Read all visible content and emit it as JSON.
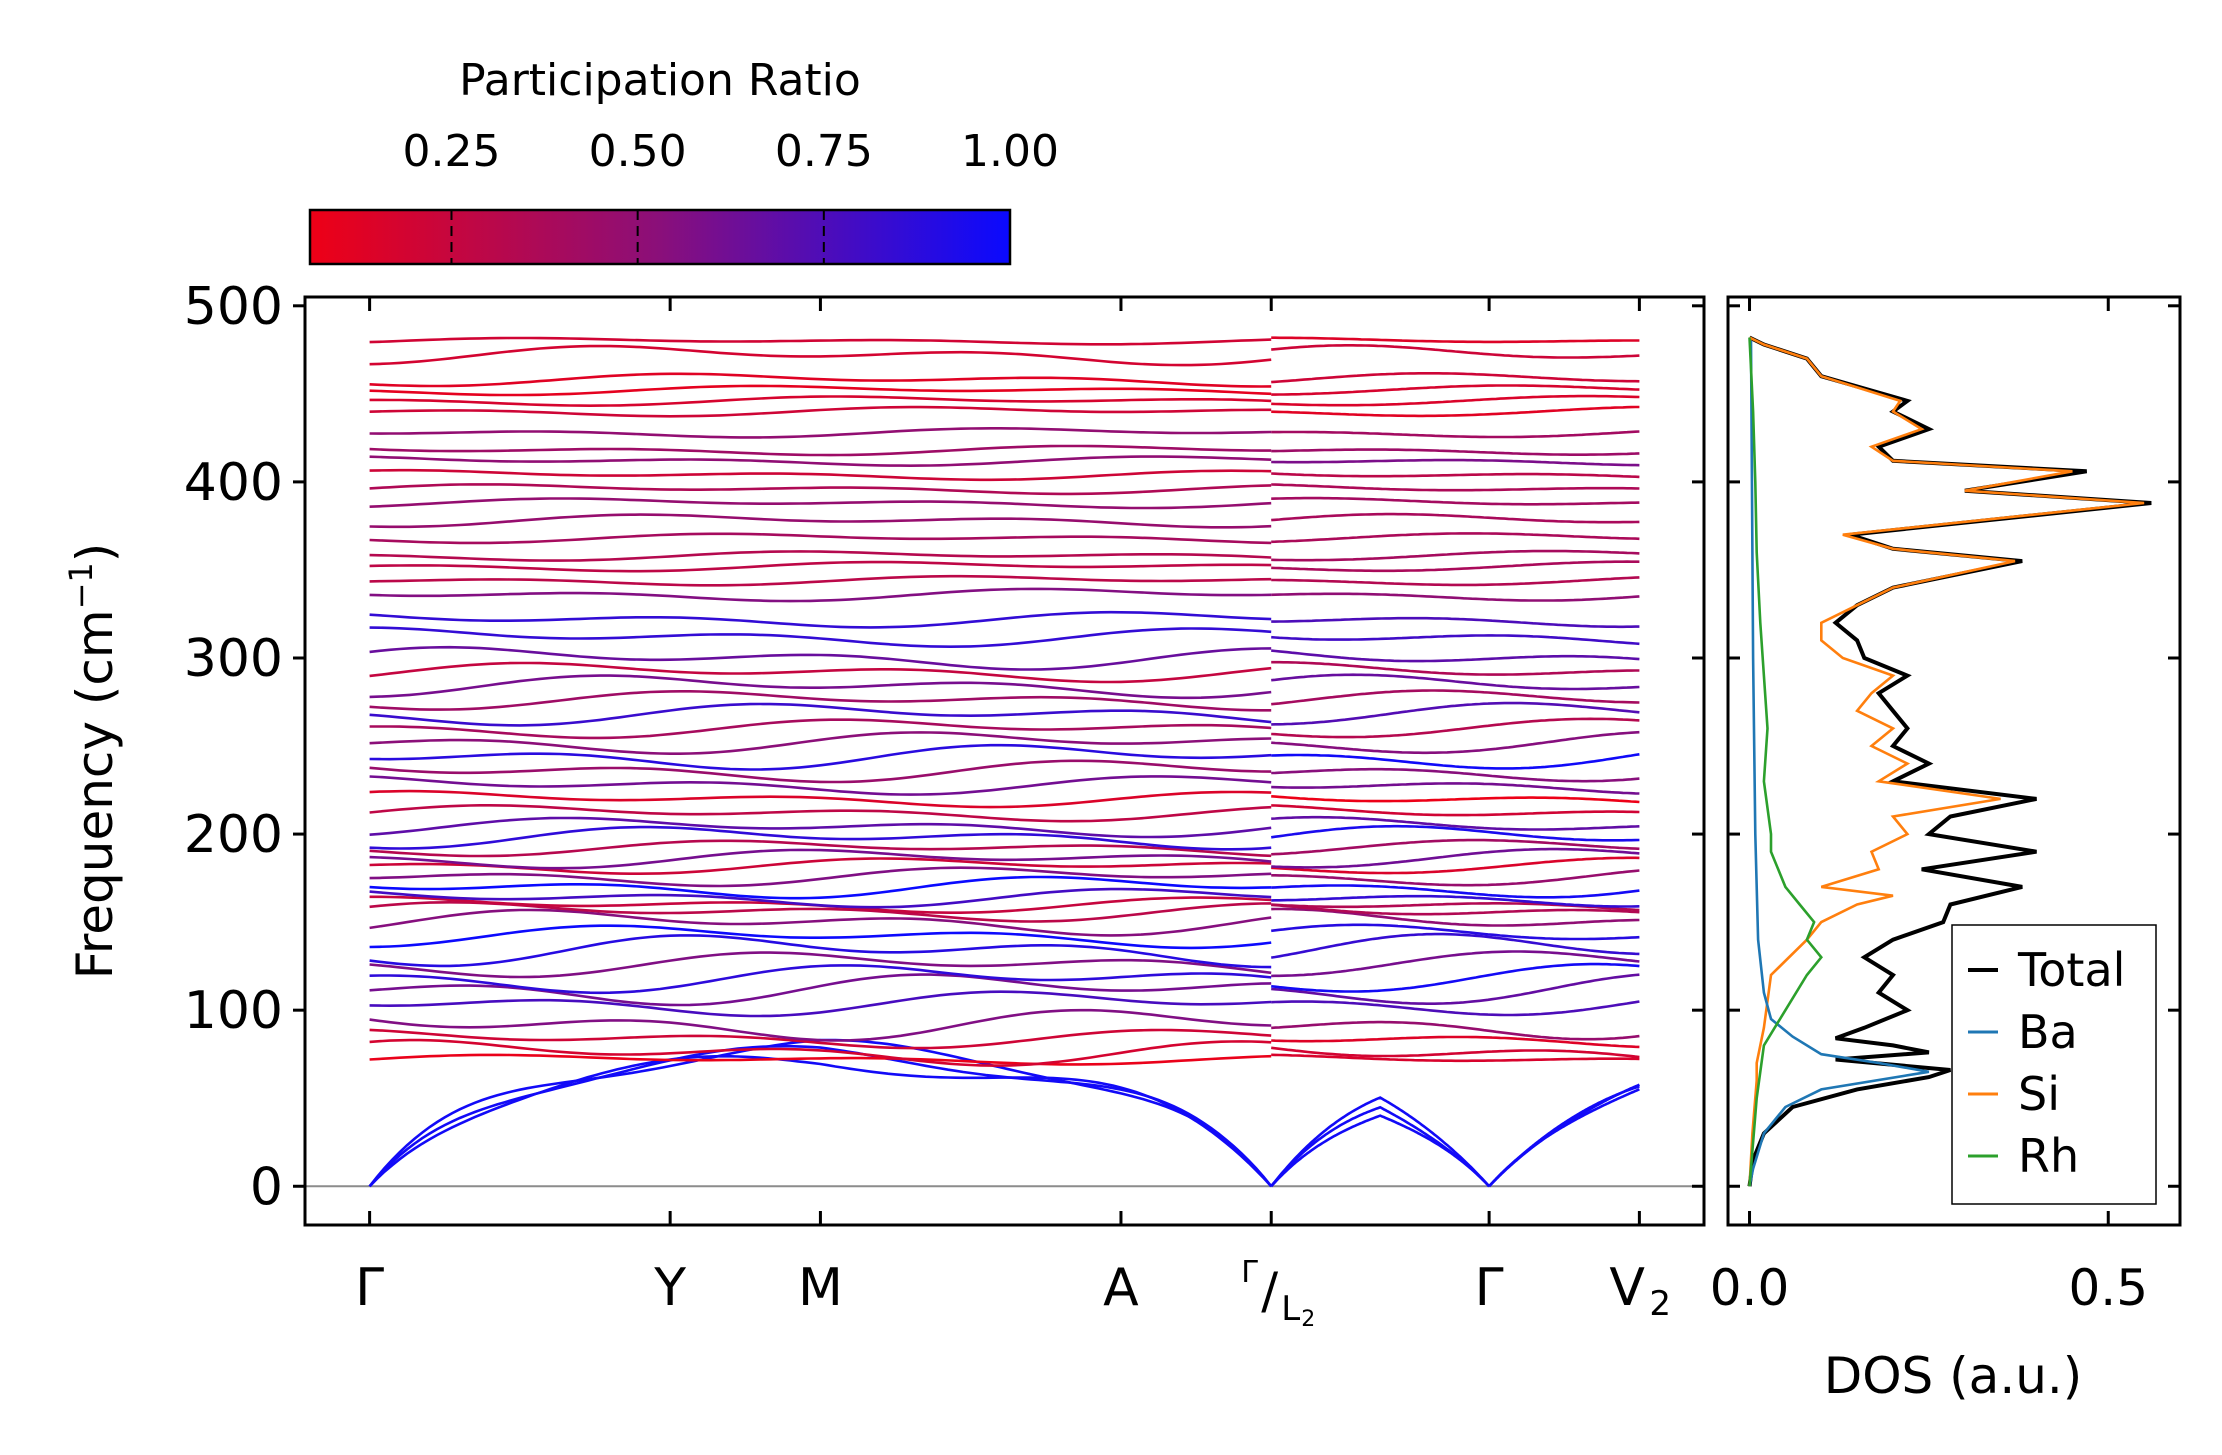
{
  "chart_data": [
    {
      "type": "line",
      "name": "phonon-band-structure",
      "ylabel": "Frequency (cm⁻¹)",
      "ylabel_base": "Frequency (cm",
      "ylabel_exp": "−1",
      "ylabel_close": ")",
      "ylim": [
        -22,
        505
      ],
      "yticks": [
        0,
        100,
        200,
        300,
        400,
        500
      ],
      "ytick_labels": [
        "0",
        "100",
        "200",
        "300",
        "400",
        "500"
      ],
      "kpath_positions": [
        0,
        2.0,
        3.0,
        5.0,
        6.0,
        7.45,
        8.45
      ],
      "kpath_labels": [
        "Γ",
        "Y",
        "M",
        "A",
        "Γ/L₂",
        "Γ",
        "V₂"
      ],
      "special_label": {
        "top": "Γ",
        "slash": "/",
        "main": "L",
        "sub": "2"
      },
      "v2_label": {
        "main": "V",
        "sub": "2"
      },
      "xlim": [
        -0.43,
        8.88
      ],
      "colorbar": {
        "label": "Participation Ratio",
        "range": [
          0.06,
          1.0
        ],
        "ticks": [
          0.25,
          0.5,
          0.75,
          1.0
        ],
        "tick_labels": [
          "0.25",
          "0.50",
          "0.75",
          "1.00"
        ],
        "color_low": "#ee0016",
        "color_mid": "#8a0f7a",
        "color_high": "#0a0aff"
      },
      "acoustic_max": [
        85,
        82,
        78
      ],
      "optical_bands": [
        {
          "freq": 72,
          "amp": 3,
          "pr": 0.08
        },
        {
          "freq": 76,
          "amp": 8,
          "pr": 0.1
        },
        {
          "freq": 84,
          "amp": 6,
          "pr": 0.12
        },
        {
          "freq": 92,
          "amp": 10,
          "pr": 0.55
        },
        {
          "freq": 104,
          "amp": 8,
          "pr": 0.85
        },
        {
          "freq": 112,
          "amp": 10,
          "pr": 0.7
        },
        {
          "freq": 118,
          "amp": 9,
          "pr": 0.9
        },
        {
          "freq": 126,
          "amp": 8,
          "pr": 0.5
        },
        {
          "freq": 134,
          "amp": 10,
          "pr": 0.8
        },
        {
          "freq": 142,
          "amp": 7,
          "pr": 0.95
        },
        {
          "freq": 150,
          "amp": 8,
          "pr": 0.6
        },
        {
          "freq": 156,
          "amp": 6,
          "pr": 0.4
        },
        {
          "freq": 160,
          "amp": 5,
          "pr": 0.3
        },
        {
          "freq": 164,
          "amp": 6,
          "pr": 0.75
        },
        {
          "freq": 170,
          "amp": 7,
          "pr": 0.9
        },
        {
          "freq": 176,
          "amp": 6,
          "pr": 0.5
        },
        {
          "freq": 182,
          "amp": 5,
          "pr": 0.25
        },
        {
          "freq": 186,
          "amp": 6,
          "pr": 0.7
        },
        {
          "freq": 192,
          "amp": 5,
          "pr": 0.4
        },
        {
          "freq": 198,
          "amp": 7,
          "pr": 0.85
        },
        {
          "freq": 204,
          "amp": 6,
          "pr": 0.6
        },
        {
          "freq": 212,
          "amp": 5,
          "pr": 0.2
        },
        {
          "freq": 220,
          "amp": 5,
          "pr": 0.15
        },
        {
          "freq": 228,
          "amp": 6,
          "pr": 0.7
        },
        {
          "freq": 236,
          "amp": 7,
          "pr": 0.55
        },
        {
          "freq": 244,
          "amp": 8,
          "pr": 0.9
        },
        {
          "freq": 252,
          "amp": 7,
          "pr": 0.45
        },
        {
          "freq": 260,
          "amp": 6,
          "pr": 0.3
        },
        {
          "freq": 268,
          "amp": 7,
          "pr": 0.8
        },
        {
          "freq": 276,
          "amp": 6,
          "pr": 0.5
        },
        {
          "freq": 284,
          "amp": 7,
          "pr": 0.7
        },
        {
          "freq": 292,
          "amp": 6,
          "pr": 0.3
        },
        {
          "freq": 300,
          "amp": 7,
          "pr": 0.6
        },
        {
          "freq": 312,
          "amp": 6,
          "pr": 0.75
        },
        {
          "freq": 322,
          "amp": 5,
          "pr": 0.8
        },
        {
          "freq": 336,
          "amp": 4,
          "pr": 0.6
        },
        {
          "freq": 344,
          "amp": 3,
          "pr": 0.4
        },
        {
          "freq": 352,
          "amp": 3,
          "pr": 0.35
        },
        {
          "freq": 358,
          "amp": 3,
          "pr": 0.3
        },
        {
          "freq": 368,
          "amp": 3,
          "pr": 0.3
        },
        {
          "freq": 378,
          "amp": 4,
          "pr": 0.4
        },
        {
          "freq": 388,
          "amp": 3,
          "pr": 0.5
        },
        {
          "freq": 396,
          "amp": 3,
          "pr": 0.45
        },
        {
          "freq": 404,
          "amp": 3,
          "pr": 0.3
        },
        {
          "freq": 412,
          "amp": 3,
          "pr": 0.5
        },
        {
          "freq": 418,
          "amp": 3,
          "pr": 0.35
        },
        {
          "freq": 428,
          "amp": 3,
          "pr": 0.4
        },
        {
          "freq": 440,
          "amp": 3,
          "pr": 0.2
        },
        {
          "freq": 446,
          "amp": 3,
          "pr": 0.25
        },
        {
          "freq": 452,
          "amp": 3,
          "pr": 0.2
        },
        {
          "freq": 458,
          "amp": 4,
          "pr": 0.15
        },
        {
          "freq": 472,
          "amp": 6,
          "pr": 0.12
        },
        {
          "freq": 480,
          "amp": 2,
          "pr": 0.1
        }
      ]
    },
    {
      "type": "line",
      "name": "density-of-states",
      "xlabel": "DOS (a.u.)",
      "xlim": [
        -0.03,
        0.6
      ],
      "xticks": [
        0.0,
        0.5
      ],
      "xtick_labels": [
        "0.0",
        "0.5"
      ],
      "ylim": [
        -22,
        505
      ],
      "legend_position": "lower-right",
      "series": [
        {
          "name": "Total",
          "color": "#000000",
          "points": [
            [
              0,
              0
            ],
            [
              0.005,
              15
            ],
            [
              0.02,
              30
            ],
            [
              0.06,
              45
            ],
            [
              0.15,
              55
            ],
            [
              0.25,
              62
            ],
            [
              0.28,
              66
            ],
            [
              0.12,
              72
            ],
            [
              0.25,
              76
            ],
            [
              0.2,
              80
            ],
            [
              0.12,
              84
            ],
            [
              0.16,
              90
            ],
            [
              0.22,
              100
            ],
            [
              0.18,
              110
            ],
            [
              0.2,
              120
            ],
            [
              0.16,
              130
            ],
            [
              0.2,
              140
            ],
            [
              0.27,
              150
            ],
            [
              0.28,
              160
            ],
            [
              0.38,
              170
            ],
            [
              0.24,
              180
            ],
            [
              0.4,
              190
            ],
            [
              0.25,
              200
            ],
            [
              0.28,
              210
            ],
            [
              0.4,
              220
            ],
            [
              0.2,
              230
            ],
            [
              0.25,
              240
            ],
            [
              0.2,
              250
            ],
            [
              0.22,
              260
            ],
            [
              0.2,
              270
            ],
            [
              0.18,
              280
            ],
            [
              0.22,
              290
            ],
            [
              0.16,
              300
            ],
            [
              0.15,
              310
            ],
            [
              0.12,
              320
            ],
            [
              0.15,
              330
            ],
            [
              0.2,
              340
            ],
            [
              0.38,
              355
            ],
            [
              0.2,
              362
            ],
            [
              0.14,
              370
            ],
            [
              0.56,
              388
            ],
            [
              0.3,
              395
            ],
            [
              0.47,
              406
            ],
            [
              0.2,
              412
            ],
            [
              0.18,
              420
            ],
            [
              0.25,
              430
            ],
            [
              0.2,
              440
            ],
            [
              0.22,
              446
            ],
            [
              0.1,
              460
            ],
            [
              0.08,
              470
            ],
            [
              0.02,
              478
            ],
            [
              0,
              482
            ]
          ]
        },
        {
          "name": "Ba",
          "color": "#1f77b4",
          "points": [
            [
              0,
              0
            ],
            [
              0.005,
              10
            ],
            [
              0.02,
              30
            ],
            [
              0.05,
              45
            ],
            [
              0.1,
              55
            ],
            [
              0.25,
              65
            ],
            [
              0.18,
              70
            ],
            [
              0.1,
              75
            ],
            [
              0.06,
              85
            ],
            [
              0.03,
              95
            ],
            [
              0.02,
              110
            ],
            [
              0.012,
              140
            ],
            [
              0.008,
              200
            ],
            [
              0.005,
              300
            ],
            [
              0.002,
              480
            ]
          ]
        },
        {
          "name": "Si",
          "color": "#ff7f0e",
          "points": [
            [
              0,
              0
            ],
            [
              0.004,
              30
            ],
            [
              0.01,
              60
            ],
            [
              0.01,
              70
            ],
            [
              0.02,
              90
            ],
            [
              0.03,
              120
            ],
            [
              0.08,
              140
            ],
            [
              0.1,
              150
            ],
            [
              0.15,
              160
            ],
            [
              0.2,
              165
            ],
            [
              0.1,
              170
            ],
            [
              0.18,
              180
            ],
            [
              0.17,
              190
            ],
            [
              0.22,
              200
            ],
            [
              0.2,
              210
            ],
            [
              0.35,
              220
            ],
            [
              0.18,
              230
            ],
            [
              0.22,
              240
            ],
            [
              0.17,
              250
            ],
            [
              0.2,
              260
            ],
            [
              0.15,
              270
            ],
            [
              0.17,
              280
            ],
            [
              0.2,
              290
            ],
            [
              0.13,
              300
            ],
            [
              0.1,
              310
            ],
            [
              0.1,
              320
            ],
            [
              0.15,
              330
            ],
            [
              0.2,
              340
            ],
            [
              0.37,
              355
            ],
            [
              0.2,
              362
            ],
            [
              0.13,
              370
            ],
            [
              0.55,
              388
            ],
            [
              0.3,
              395
            ],
            [
              0.45,
              406
            ],
            [
              0.2,
              412
            ],
            [
              0.17,
              420
            ],
            [
              0.24,
              430
            ],
            [
              0.2,
              440
            ],
            [
              0.21,
              446
            ],
            [
              0.1,
              460
            ],
            [
              0.08,
              470
            ],
            [
              0.02,
              478
            ],
            [
              0,
              482
            ]
          ]
        },
        {
          "name": "Rh",
          "color": "#2ca02c",
          "points": [
            [
              0,
              0
            ],
            [
              0.01,
              50
            ],
            [
              0.02,
              80
            ],
            [
              0.05,
              100
            ],
            [
              0.08,
              120
            ],
            [
              0.1,
              130
            ],
            [
              0.08,
              140
            ],
            [
              0.09,
              150
            ],
            [
              0.07,
              160
            ],
            [
              0.05,
              170
            ],
            [
              0.04,
              180
            ],
            [
              0.03,
              190
            ],
            [
              0.03,
              200
            ],
            [
              0.02,
              230
            ],
            [
              0.025,
              260
            ],
            [
              0.02,
              290
            ],
            [
              0.015,
              320
            ],
            [
              0.01,
              360
            ],
            [
              0.008,
              400
            ],
            [
              0.005,
              440
            ],
            [
              0,
              482
            ]
          ]
        }
      ]
    }
  ]
}
